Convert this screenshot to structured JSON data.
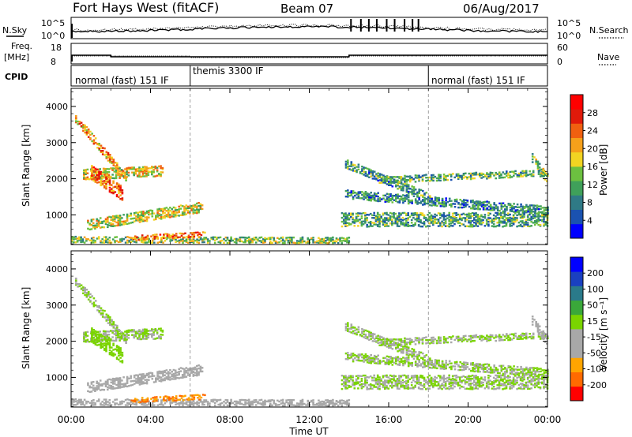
{
  "header": {
    "station": "Fort Hays West (fitACF)",
    "beam": "Beam 07",
    "date": "06/Aug/2017"
  },
  "top_panels": {
    "nsky_label": "N.Sky",
    "nsearch_label": "N.Search",
    "noise_ticks": [
      "10^5",
      "10^0"
    ],
    "freq_label": "Freq.",
    "freq_unit": "[MHz]",
    "freq_ticks": [
      "18",
      "8"
    ],
    "nave_label": "Nave",
    "nave_ticks": [
      "60",
      "0"
    ],
    "cpid_label": "CPID",
    "cpid_segments": [
      {
        "label": "normal (fast) 151 IF",
        "start_hour": 0,
        "end_hour": 6
      },
      {
        "label": "themis 3300 IF",
        "start_hour": 6,
        "end_hour": 18
      },
      {
        "label": "normal (fast) 151 IF",
        "start_hour": 18,
        "end_hour": 24
      }
    ]
  },
  "colors": {
    "power_scale": [
      "#0000ff",
      "#1a52b0",
      "#2f7a86",
      "#3fa05a",
      "#6cc040",
      "#f2d422",
      "#f5a01a",
      "#f06010",
      "#e01a0a",
      "#ff0000"
    ],
    "velocity_scale": [
      "#ff0000",
      "#ff6a00",
      "#ffa500",
      "#a8a8a8",
      "#a8a8a8",
      "#7ad400",
      "#3aa83a",
      "#2a7a8a",
      "#1a40c0",
      "#0000ff"
    ]
  },
  "chart_data": [
    {
      "type": "heatmap",
      "name": "power",
      "ylabel": "Slant Range [km]",
      "xlabel": "Time UT",
      "colorbar_label": "Power [dB]",
      "colorbar_ticks": [
        "28",
        "24",
        "20",
        "16",
        "12",
        "8",
        "4"
      ],
      "colorbar_range": [
        0,
        32
      ],
      "xlim": [
        0,
        24
      ],
      "ylim": [
        180,
        4500
      ],
      "x_ticks": [
        "00:00",
        "04:00",
        "08:00",
        "12:00",
        "16:00",
        "20:00",
        "00:00"
      ],
      "y_ticks": [
        "1000",
        "2000",
        "3000",
        "4000"
      ],
      "grid": false,
      "cpid_boundaries_hours": [
        6,
        18
      ],
      "echo_regions": [
        {
          "t_start": 0.2,
          "t_end": 2.8,
          "r_start": 3700,
          "r_end": 2000,
          "width_km": 250,
          "value": 22
        },
        {
          "t_start": 0.6,
          "t_end": 4.6,
          "r_start": 2150,
          "r_end": 2250,
          "width_km": 300,
          "value": 18
        },
        {
          "t_start": 1.0,
          "t_end": 2.6,
          "r_start": 2200,
          "r_end": 1600,
          "width_km": 400,
          "value": 24
        },
        {
          "t_start": 0.8,
          "t_end": 6.6,
          "r_start": 750,
          "r_end": 1250,
          "width_km": 300,
          "value": 17
        },
        {
          "t_start": 0.0,
          "t_end": 14.0,
          "r_start": 350,
          "r_end": 330,
          "width_km": 180,
          "value": 14
        },
        {
          "t_start": 3.0,
          "t_end": 6.8,
          "r_start": 400,
          "r_end": 500,
          "width_km": 150,
          "value": 23
        },
        {
          "t_start": 13.8,
          "t_end": 18.5,
          "r_start": 2450,
          "r_end": 1400,
          "width_km": 250,
          "value": 10
        },
        {
          "t_start": 13.8,
          "t_end": 24.0,
          "r_start": 1600,
          "r_end": 1150,
          "width_km": 250,
          "value": 9
        },
        {
          "t_start": 13.6,
          "t_end": 24.0,
          "r_start": 900,
          "r_end": 900,
          "width_km": 400,
          "value": 11
        },
        {
          "t_start": 15.5,
          "t_end": 24.0,
          "r_start": 2000,
          "r_end": 2200,
          "width_km": 200,
          "value": 12
        },
        {
          "t_start": 23.2,
          "t_end": 24.0,
          "r_start": 2600,
          "r_end": 2000,
          "width_km": 250,
          "value": 14
        }
      ]
    },
    {
      "type": "heatmap",
      "name": "velocity",
      "ylabel": "Slant Range [km]",
      "xlabel": "Time UT",
      "colorbar_label": "Velocity [m s⁻¹]",
      "colorbar_ticks": [
        "200",
        "100",
        "50",
        "15",
        "-15",
        "-50",
        "-100",
        "-200"
      ],
      "colorbar_range": [
        -250,
        250
      ],
      "xlim": [
        0,
        24
      ],
      "ylim": [
        180,
        4500
      ],
      "x_ticks": [
        "00:00",
        "04:00",
        "08:00",
        "12:00",
        "16:00",
        "20:00",
        "00:00"
      ],
      "y_ticks": [
        "1000",
        "2000",
        "3000",
        "4000"
      ],
      "grid": false,
      "cpid_boundaries_hours": [
        6,
        18
      ],
      "echo_regions": [
        {
          "t_start": 0.2,
          "t_end": 2.8,
          "r_start": 3700,
          "r_end": 2000,
          "width_km": 250,
          "value": 0
        },
        {
          "t_start": 0.6,
          "t_end": 4.6,
          "r_start": 2150,
          "r_end": 2250,
          "width_km": 300,
          "value": 0
        },
        {
          "t_start": 1.0,
          "t_end": 2.6,
          "r_start": 2200,
          "r_end": 1600,
          "width_km": 400,
          "value": 30
        },
        {
          "t_start": 0.8,
          "t_end": 6.6,
          "r_start": 750,
          "r_end": 1250,
          "width_km": 300,
          "value": -60
        },
        {
          "t_start": 0.0,
          "t_end": 14.0,
          "r_start": 350,
          "r_end": 330,
          "width_km": 180,
          "value": -70
        },
        {
          "t_start": 3.0,
          "t_end": 6.8,
          "r_start": 400,
          "r_end": 500,
          "width_km": 150,
          "value": -150
        },
        {
          "t_start": 13.8,
          "t_end": 18.5,
          "r_start": 2450,
          "r_end": 1400,
          "width_km": 250,
          "value": 0
        },
        {
          "t_start": 13.8,
          "t_end": 24.0,
          "r_start": 1600,
          "r_end": 1150,
          "width_km": 250,
          "value": 0
        },
        {
          "t_start": 13.6,
          "t_end": 24.0,
          "r_start": 900,
          "r_end": 900,
          "width_km": 400,
          "value": 0
        },
        {
          "t_start": 15.5,
          "t_end": 24.0,
          "r_start": 2000,
          "r_end": 2200,
          "width_km": 200,
          "value": 0
        },
        {
          "t_start": 23.2,
          "t_end": 24.0,
          "r_start": 2600,
          "r_end": 2000,
          "width_km": 250,
          "value": -20
        }
      ]
    }
  ]
}
